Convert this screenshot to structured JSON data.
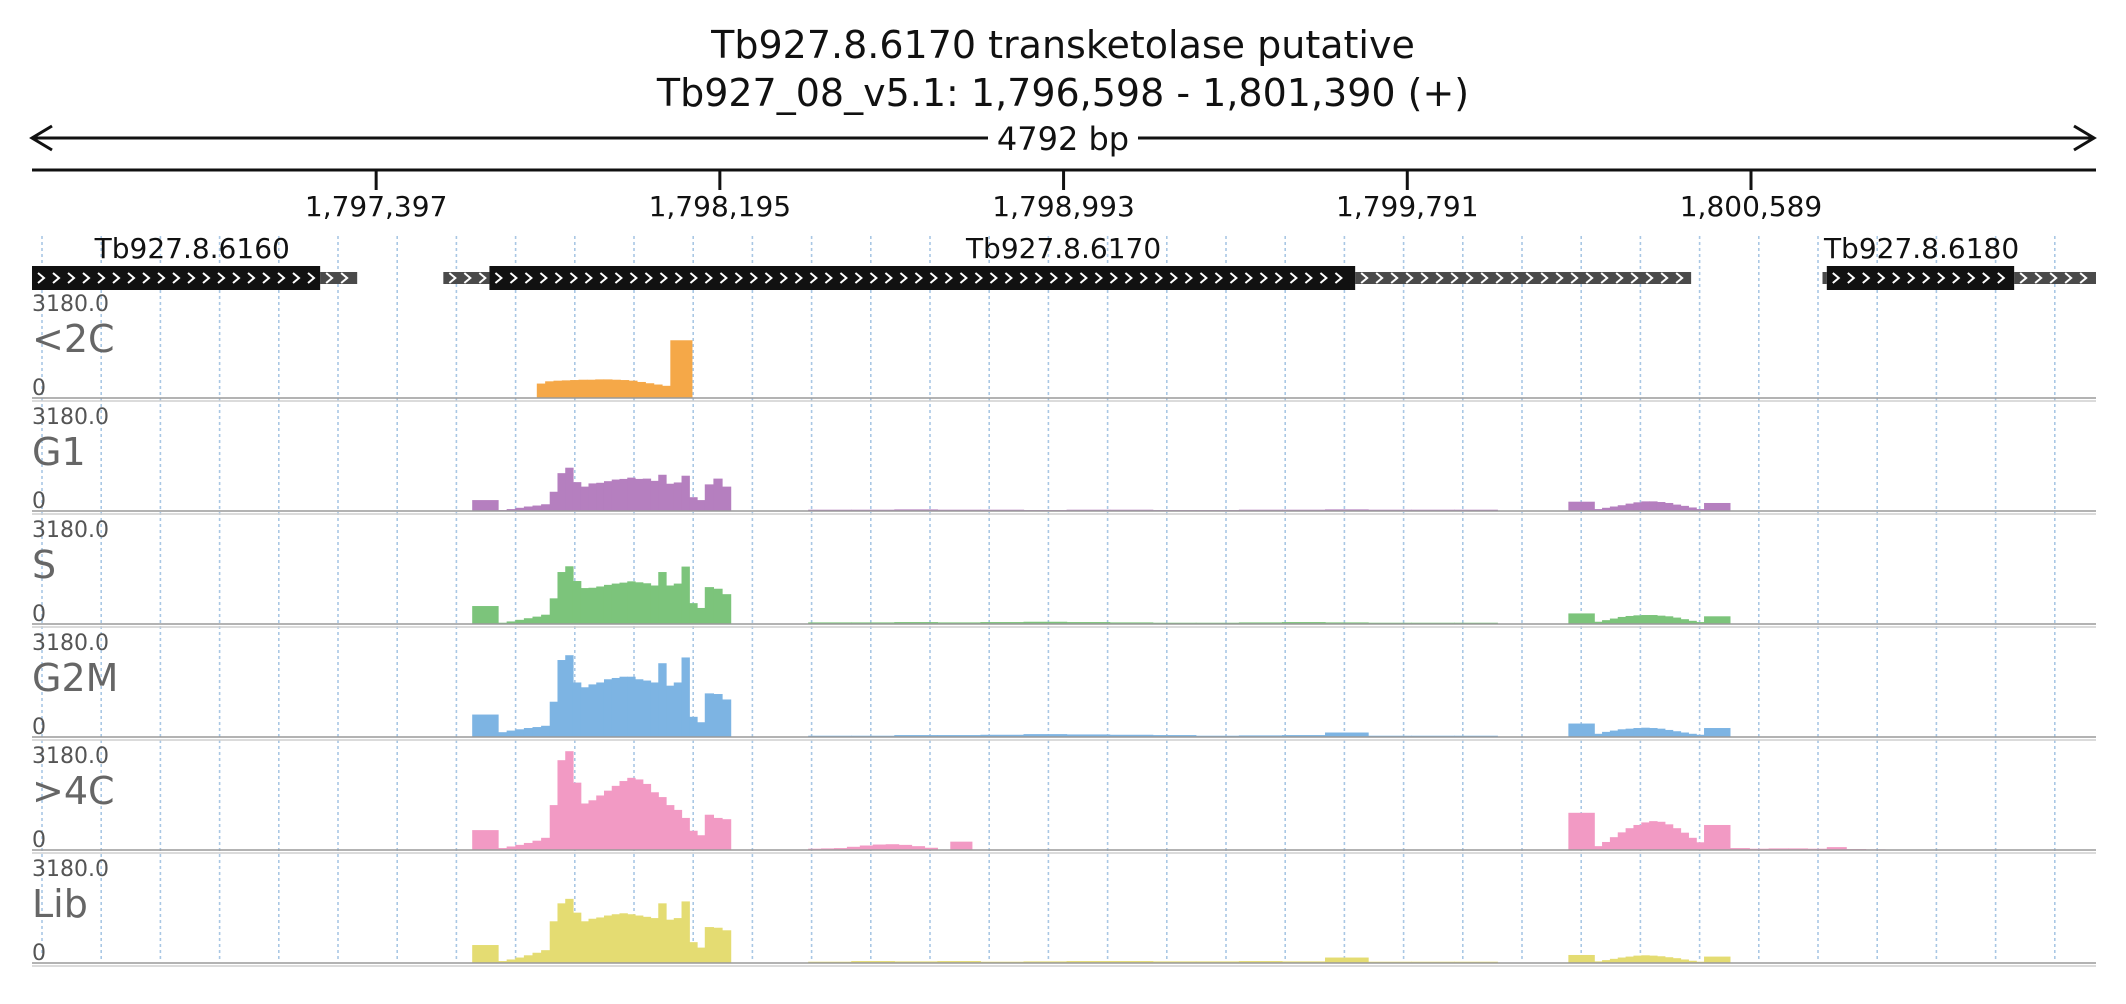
{
  "title": "Tb927.8.6170  transketolase  putative",
  "locus": "Tb927_08_v5.1: 1,796,598 - 1,801,390 (+)",
  "span_label": "4792 bp",
  "chart_data": {
    "type": "area",
    "x_range": [
      1796598,
      1801390
    ],
    "y_range": [
      0,
      3180
    ],
    "ticks": [
      1797397,
      1798195,
      1798993,
      1799791,
      1800589
    ],
    "tick_labels": [
      "1,797,397",
      "1,798,195",
      "1,798,993",
      "1,799,791",
      "1,800,589"
    ],
    "genes": [
      {
        "name": "Tb927.8.6160",
        "start": 1796598,
        "end": 1797267,
        "utr_end": 1797353,
        "utr_start": null,
        "label_pos": 1796970
      },
      {
        "name": "Tb927.8.6170",
        "start": 1797660,
        "end": 1799670,
        "utr_start": 1797553,
        "utr_end": 1800450,
        "label_pos": 1798993
      },
      {
        "name": "Tb927.8.6180",
        "start": 1800765,
        "end": 1801200,
        "utr_start": 1800755,
        "utr_end": 1801390,
        "label_pos": 1800985
      }
    ],
    "tracks": [
      {
        "name": "<2C",
        "ymax_label": "3180.0",
        "ymin_label": "0",
        "color": "#f5a848",
        "blocks": [
          {
            "start": 1797770,
            "end": 1798080,
            "values": [
              450,
              520,
              540,
              550,
              560,
              570,
              570,
              580,
              580,
              570,
              560,
              540,
              500,
              460,
              420,
              380
            ]
          },
          {
            "start": 1798080,
            "end": 1798130,
            "values": [
              1800
            ]
          }
        ]
      },
      {
        "name": "G1",
        "ymax_label": "3180.0",
        "ymin_label": "0",
        "color": "#b57fbf",
        "blocks": [
          {
            "start": 1797620,
            "end": 1797680,
            "values": [
              340
            ]
          },
          {
            "start": 1797680,
            "end": 1797800,
            "values": [
              30,
              60,
              100,
              140,
              170,
              210
            ]
          },
          {
            "start": 1797800,
            "end": 1798160,
            "values": [
              600,
              1180,
              1350,
              900,
              760,
              860,
              880,
              930,
              980,
              1000,
              1040,
              1000,
              1010,
              940,
              1130,
              850,
              890,
              1100,
              430,
              340
            ]
          },
          {
            "start": 1798160,
            "end": 1798220,
            "values": [
              830,
              1010,
              760
            ]
          },
          {
            "start": 1798400,
            "end": 1800000,
            "values": [
              40,
              40,
              50,
              40,
              40,
              30,
              40,
              40,
              30,
              30,
              40,
              40,
              50,
              40,
              40,
              40
            ]
          },
          {
            "start": 1800165,
            "end": 1800225,
            "values": [
              290
            ]
          },
          {
            "start": 1800225,
            "end": 1800480,
            "values": [
              60,
              100,
              140,
              180,
              230,
              270,
              300,
              300,
              280,
              250,
              200,
              160,
              110,
              60
            ]
          },
          {
            "start": 1800480,
            "end": 1800540,
            "values": [
              250
            ]
          }
        ]
      },
      {
        "name": "S",
        "ymax_label": "3180.0",
        "ymin_label": "0",
        "color": "#7cc47b",
        "blocks": [
          {
            "start": 1797620,
            "end": 1797680,
            "values": [
              560
            ]
          },
          {
            "start": 1797680,
            "end": 1797800,
            "values": [
              40,
              80,
              130,
              180,
              230,
              290
            ]
          },
          {
            "start": 1797800,
            "end": 1798160,
            "values": [
              800,
              1620,
              1800,
              1340,
              1120,
              1130,
              1170,
              1220,
              1260,
              1290,
              1330,
              1300,
              1270,
              1200,
              1620,
              1200,
              1260,
              1790,
              650,
              500
            ]
          },
          {
            "start": 1798160,
            "end": 1798220,
            "values": [
              1150,
              1100,
              930
            ]
          },
          {
            "start": 1798400,
            "end": 1800000,
            "values": [
              50,
              50,
              60,
              50,
              60,
              70,
              60,
              50,
              40,
              40,
              50,
              60,
              50,
              40,
              40,
              40
            ]
          },
          {
            "start": 1800165,
            "end": 1800225,
            "values": [
              330
            ]
          },
          {
            "start": 1800225,
            "end": 1800480,
            "values": [
              70,
              120,
              170,
              220,
              250,
              270,
              280,
              280,
              260,
              240,
              200,
              150,
              100,
              60
            ]
          },
          {
            "start": 1800480,
            "end": 1800540,
            "values": [
              240
            ]
          }
        ]
      },
      {
        "name": "G2M",
        "ymax_label": "3180.0",
        "ymin_label": "0",
        "color": "#7db4e3",
        "blocks": [
          {
            "start": 1797620,
            "end": 1797680,
            "values": [
              700
            ]
          },
          {
            "start": 1797680,
            "end": 1797800,
            "values": [
              150,
              200,
              240,
              280,
              310,
              350
            ]
          },
          {
            "start": 1797800,
            "end": 1798160,
            "values": [
              1100,
              2400,
              2550,
              1700,
              1550,
              1640,
              1700,
              1800,
              1840,
              1880,
              1880,
              1800,
              1760,
              1700,
              2300,
              1600,
              1700,
              2480,
              630,
              460
            ]
          },
          {
            "start": 1798160,
            "end": 1798220,
            "values": [
              1360,
              1340,
              1170
            ]
          },
          {
            "start": 1798400,
            "end": 1800000,
            "values": [
              40,
              40,
              60,
              60,
              70,
              90,
              80,
              70,
              60,
              40,
              50,
              60,
              140,
              40,
              40,
              40
            ]
          },
          {
            "start": 1800165,
            "end": 1800225,
            "values": [
              420
            ]
          },
          {
            "start": 1800225,
            "end": 1800480,
            "values": [
              100,
              160,
              200,
              240,
              260,
              280,
              290,
              280,
              260,
              220,
              180,
              140,
              100,
              70
            ]
          },
          {
            "start": 1800480,
            "end": 1800540,
            "values": [
              280
            ]
          }
        ]
      },
      {
        "name": ">4C",
        "ymax_label": "3180.0",
        "ymin_label": "0",
        "color": "#f29ac4",
        "blocks": [
          {
            "start": 1797620,
            "end": 1797680,
            "values": [
              620
            ]
          },
          {
            "start": 1797680,
            "end": 1797800,
            "values": [
              60,
              110,
              160,
              220,
              290,
              380
            ]
          },
          {
            "start": 1797800,
            "end": 1798160,
            "values": [
              1400,
              2800,
              3080,
              2100,
              1450,
              1550,
              1700,
              1850,
              2000,
              2150,
              2250,
              2200,
              2060,
              1800,
              1650,
              1400,
              1250,
              1000,
              600,
              460
            ]
          },
          {
            "start": 1798160,
            "end": 1798220,
            "values": [
              1100,
              1000,
              960
            ]
          },
          {
            "start": 1798400,
            "end": 1798700,
            "values": [
              40,
              50,
              60,
              100,
              140,
              170,
              180,
              160,
              120,
              70
            ]
          },
          {
            "start": 1798730,
            "end": 1798780,
            "values": [
              260
            ]
          },
          {
            "start": 1800165,
            "end": 1800225,
            "values": [
              1160
            ]
          },
          {
            "start": 1800225,
            "end": 1800480,
            "values": [
              120,
              250,
              400,
              550,
              680,
              780,
              860,
              900,
              880,
              800,
              680,
              540,
              380,
              240
            ]
          },
          {
            "start": 1800480,
            "end": 1800540,
            "values": [
              780
            ]
          },
          {
            "start": 1800540,
            "end": 1800900,
            "values": [
              60,
              40,
              50,
              50,
              40,
              90,
              30,
              20
            ]
          }
        ]
      },
      {
        "name": "Lib",
        "ymax_label": "3180.0",
        "ymin_label": "0",
        "color": "#e4dc72",
        "blocks": [
          {
            "start": 1797620,
            "end": 1797680,
            "values": [
              560
            ]
          },
          {
            "start": 1797680,
            "end": 1797800,
            "values": [
              60,
              110,
              170,
              240,
              320,
              400
            ]
          },
          {
            "start": 1797800,
            "end": 1798160,
            "values": [
              1300,
              1860,
              2000,
              1570,
              1300,
              1380,
              1420,
              1480,
              1520,
              1550,
              1520,
              1480,
              1440,
              1400,
              1860,
              1350,
              1400,
              1920,
              650,
              480
            ]
          },
          {
            "start": 1798160,
            "end": 1798220,
            "values": [
              1120,
              1100,
              1020
            ]
          },
          {
            "start": 1798400,
            "end": 1800000,
            "values": [
              40,
              60,
              50,
              60,
              40,
              50,
              60,
              60,
              50,
              50,
              60,
              50,
              170,
              40,
              40,
              40
            ]
          },
          {
            "start": 1800165,
            "end": 1800225,
            "values": [
              250
            ]
          },
          {
            "start": 1800225,
            "end": 1800480,
            "values": [
              50,
              90,
              130,
              170,
              200,
              230,
              240,
              230,
              210,
              180,
              150,
              110,
              70,
              40
            ]
          },
          {
            "start": 1800480,
            "end": 1800540,
            "values": [
              200
            ]
          }
        ]
      }
    ],
    "grid": true
  }
}
